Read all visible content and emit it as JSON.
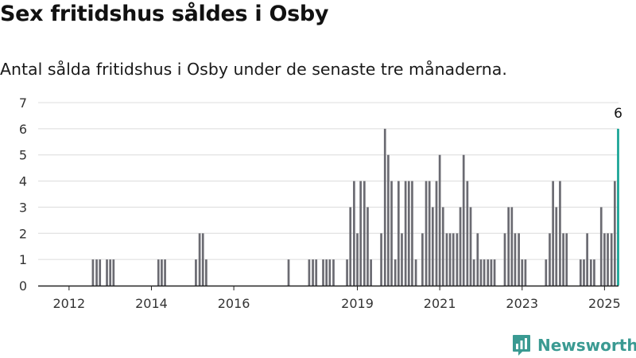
{
  "title": "Sex fritidshus såldes i Osby",
  "subtitle": "Antal sålda fritidshus i Osby under de senaste tre månaderna.",
  "brand": "Newsworthy",
  "colors": {
    "bar": "#6b6b72",
    "highlight": "#16a394",
    "grid": "#dcdcdc",
    "axis": "#222222",
    "brand": "#3a9a92"
  },
  "chart_data": {
    "type": "bar",
    "ylim": [
      0,
      7
    ],
    "yticks": [
      0,
      1,
      2,
      3,
      4,
      5,
      6,
      7
    ],
    "xlim": [
      2011.25,
      2025.34
    ],
    "xticks": [
      2012,
      2014,
      2016,
      2019,
      2021,
      2023,
      2025
    ],
    "grid": true,
    "annotation": {
      "text": "6",
      "x": 2025.08,
      "y": 6
    },
    "series": [
      {
        "points": [
          [
            2012.58,
            1
          ],
          [
            2012.67,
            1
          ],
          [
            2012.75,
            1
          ],
          [
            2012.92,
            1
          ],
          [
            2013.0,
            1
          ],
          [
            2013.08,
            1
          ],
          [
            2014.17,
            1
          ],
          [
            2014.25,
            1
          ],
          [
            2014.33,
            1
          ],
          [
            2015.08,
            1
          ],
          [
            2015.17,
            2
          ],
          [
            2015.25,
            2
          ],
          [
            2015.33,
            1
          ],
          [
            2017.33,
            1
          ],
          [
            2017.83,
            1
          ],
          [
            2017.92,
            1
          ],
          [
            2018.0,
            1
          ],
          [
            2018.17,
            1
          ],
          [
            2018.25,
            1
          ],
          [
            2018.33,
            1
          ],
          [
            2018.42,
            1
          ],
          [
            2018.75,
            1
          ],
          [
            2018.83,
            3
          ],
          [
            2018.92,
            4
          ],
          [
            2019.0,
            2
          ],
          [
            2019.08,
            4
          ],
          [
            2019.17,
            4
          ],
          [
            2019.25,
            3
          ],
          [
            2019.33,
            1
          ],
          [
            2019.58,
            2
          ],
          [
            2019.67,
            6
          ],
          [
            2019.75,
            5
          ],
          [
            2019.83,
            4
          ],
          [
            2019.92,
            1
          ],
          [
            2020.0,
            4
          ],
          [
            2020.08,
            2
          ],
          [
            2020.17,
            4
          ],
          [
            2020.25,
            4
          ],
          [
            2020.33,
            4
          ],
          [
            2020.42,
            1
          ],
          [
            2020.58,
            2
          ],
          [
            2020.67,
            4
          ],
          [
            2020.75,
            4
          ],
          [
            2020.83,
            3
          ],
          [
            2020.92,
            4
          ],
          [
            2021.0,
            5
          ],
          [
            2021.08,
            3
          ],
          [
            2021.17,
            2
          ],
          [
            2021.25,
            2
          ],
          [
            2021.33,
            2
          ],
          [
            2021.42,
            2
          ],
          [
            2021.5,
            3
          ],
          [
            2021.58,
            5
          ],
          [
            2021.67,
            4
          ],
          [
            2021.75,
            3
          ],
          [
            2021.83,
            1
          ],
          [
            2021.92,
            2
          ],
          [
            2022.0,
            1
          ],
          [
            2022.08,
            1
          ],
          [
            2022.17,
            1
          ],
          [
            2022.25,
            1
          ],
          [
            2022.33,
            1
          ],
          [
            2022.58,
            2
          ],
          [
            2022.67,
            3
          ],
          [
            2022.75,
            3
          ],
          [
            2022.83,
            2
          ],
          [
            2022.92,
            2
          ],
          [
            2023.0,
            1
          ],
          [
            2023.08,
            1
          ],
          [
            2023.58,
            1
          ],
          [
            2023.67,
            2
          ],
          [
            2023.75,
            4
          ],
          [
            2023.83,
            3
          ],
          [
            2023.92,
            4
          ],
          [
            2024.0,
            2
          ],
          [
            2024.08,
            2
          ],
          [
            2024.42,
            1
          ],
          [
            2024.5,
            1
          ],
          [
            2024.58,
            2
          ],
          [
            2024.67,
            1
          ],
          [
            2024.75,
            1
          ],
          [
            2024.92,
            3
          ],
          [
            2025.0,
            2
          ],
          [
            2025.08,
            2
          ],
          [
            2025.17,
            2
          ],
          [
            2025.25,
            4
          ]
        ]
      }
    ],
    "highlight": {
      "x": 2025.33,
      "value": 6
    }
  }
}
